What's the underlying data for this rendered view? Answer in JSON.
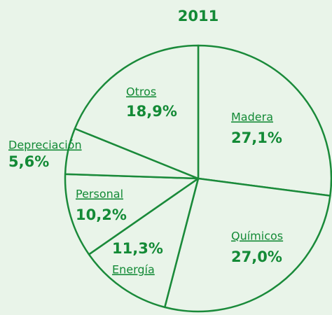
{
  "chart_data": {
    "type": "pie",
    "title": "2011",
    "categories": [
      "Madera",
      "Químicos",
      "Energía",
      "Personal",
      "Depreciación",
      "Otros"
    ],
    "values": [
      27.1,
      27.0,
      11.3,
      10.2,
      5.6,
      18.9
    ],
    "value_labels": [
      "27,1%",
      "27,0%",
      "11,3%",
      "10,2%",
      "5,6%",
      "18,9%"
    ],
    "color": "#1a8a3a"
  }
}
